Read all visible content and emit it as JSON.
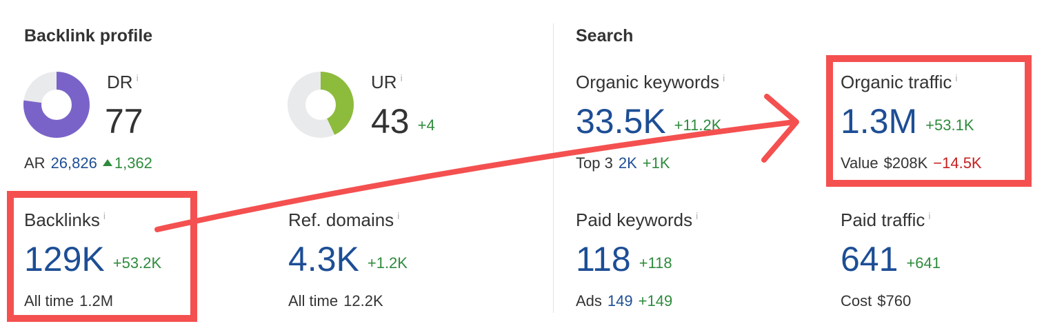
{
  "colors": {
    "blue_value": "#1d4e95",
    "positive": "#2e8b3c",
    "negative": "#c81e1e",
    "highlight": "#f45050",
    "dr_donut": "#7a63c8",
    "ur_donut": "#8dbb3c",
    "donut_track": "#e9eaec"
  },
  "backlink_profile": {
    "title": "Backlink profile",
    "dr": {
      "label": "DR",
      "value": "77",
      "gauge_percent": 77
    },
    "ar": {
      "label": "AR",
      "value": "26,826",
      "delta": "1,362"
    },
    "ur": {
      "label": "UR",
      "value": "43",
      "delta": "+4",
      "gauge_percent": 43
    },
    "backlinks": {
      "label": "Backlinks",
      "value": "129K",
      "delta": "+53.2K",
      "sub_label": "All time",
      "sub_value": "1.2M"
    },
    "ref_domains": {
      "label": "Ref. domains",
      "value": "4.3K",
      "delta": "+1.2K",
      "sub_label": "All time",
      "sub_value": "12.2K"
    }
  },
  "search": {
    "title": "Search",
    "organic_keywords": {
      "label": "Organic keywords",
      "value": "33.5K",
      "delta": "+11.2K",
      "sub_label": "Top 3",
      "sub_value": "2K",
      "sub_delta": "+1K"
    },
    "organic_traffic": {
      "label": "Organic traffic",
      "value": "1.3M",
      "delta": "+53.1K",
      "sub_label": "Value",
      "sub_value": "$208K",
      "sub_delta": "−14.5K"
    },
    "paid_keywords": {
      "label": "Paid keywords",
      "value": "118",
      "delta": "+118",
      "sub_label": "Ads",
      "sub_value": "149",
      "sub_delta": "+149"
    },
    "paid_traffic": {
      "label": "Paid traffic",
      "value": "641",
      "delta": "+641",
      "sub_label": "Cost",
      "sub_value": "$760"
    }
  },
  "info_icon": "i",
  "icons": [
    "info-icon",
    "triangle-up-icon",
    "annotation-arrow"
  ]
}
